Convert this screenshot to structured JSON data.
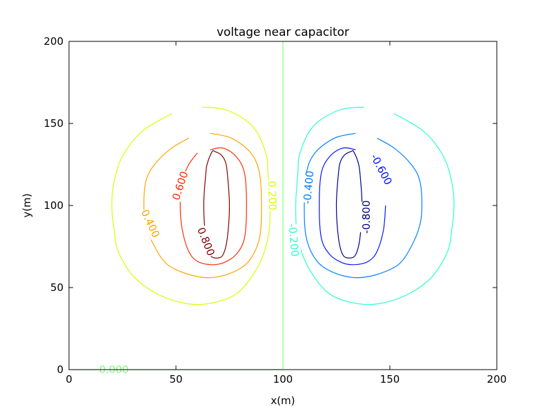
{
  "chart_data": {
    "type": "contour",
    "title": "voltage near capacitor",
    "xlabel": "x(m)",
    "ylabel": "y(m)",
    "xlim": [
      0,
      200
    ],
    "ylim": [
      0,
      200
    ],
    "x_ticks": [
      0,
      50,
      100,
      150,
      200
    ],
    "x_tick_labels": [
      "0",
      "50",
      "100",
      "150",
      "200"
    ],
    "y_ticks": [
      0,
      50,
      100,
      150,
      200
    ],
    "y_tick_labels": [
      "0",
      "50",
      "100",
      "150",
      "200"
    ],
    "grid": false,
    "colormap": "jet",
    "contours": [
      {
        "level": 0.8,
        "label": "0.800",
        "color": "#800000",
        "points": [
          [
            68,
            133
          ],
          [
            71,
            131
          ],
          [
            73,
            127
          ],
          [
            74,
            120
          ],
          [
            75,
            100
          ],
          [
            74,
            80
          ],
          [
            72,
            70
          ],
          [
            69,
            68
          ],
          [
            66,
            70
          ],
          [
            64,
            80
          ],
          [
            63,
            100
          ],
          [
            64,
            120
          ],
          [
            65,
            127
          ],
          [
            67,
            133
          ]
        ],
        "labels": [
          {
            "x": 64,
            "y": 78,
            "rot": 68
          }
        ]
      },
      {
        "level": 0.6,
        "label": "0.600",
        "color": "#ff2a00",
        "points": [
          [
            66,
            134
          ],
          [
            72,
            135
          ],
          [
            78,
            130
          ],
          [
            82,
            120
          ],
          [
            83,
            100
          ],
          [
            82,
            80
          ],
          [
            78,
            70
          ],
          [
            72,
            65
          ],
          [
            66,
            64
          ],
          [
            60,
            66
          ],
          [
            56,
            72
          ],
          [
            53,
            85
          ],
          [
            52,
            100
          ],
          [
            53,
            115
          ],
          [
            56,
            125
          ],
          [
            60,
            132
          ]
        ],
        "labels": [
          {
            "x": 52,
            "y": 112,
            "rot": -72
          }
        ]
      },
      {
        "level": 0.4,
        "label": "0.400",
        "color": "#ffa200",
        "points": [
          [
            66,
            144
          ],
          [
            76,
            141
          ],
          [
            85,
            132
          ],
          [
            89,
            120
          ],
          [
            90,
            100
          ],
          [
            89,
            80
          ],
          [
            84,
            66
          ],
          [
            76,
            59
          ],
          [
            66,
            56
          ],
          [
            56,
            58
          ],
          [
            46,
            64
          ],
          [
            40,
            75
          ],
          [
            36,
            88
          ],
          [
            35,
            100
          ],
          [
            36,
            115
          ],
          [
            40,
            125
          ],
          [
            48,
            135
          ],
          [
            56,
            141
          ]
        ],
        "labels": [
          {
            "x": 38,
            "y": 89,
            "rot": 65
          }
        ]
      },
      {
        "level": 0.2,
        "label": "0.200",
        "color": "#d4ff00",
        "points": [
          [
            62,
            160
          ],
          [
            74,
            158
          ],
          [
            86,
            148
          ],
          [
            92,
            132
          ],
          [
            93,
            120
          ],
          [
            94,
            100
          ],
          [
            93,
            80
          ],
          [
            88,
            62
          ],
          [
            78,
            46
          ],
          [
            64,
            40
          ],
          [
            52,
            41
          ],
          [
            40,
            47
          ],
          [
            30,
            57
          ],
          [
            23,
            72
          ],
          [
            21,
            86
          ],
          [
            20,
            100
          ],
          [
            21,
            114
          ],
          [
            25,
            130
          ],
          [
            34,
            145
          ],
          [
            48,
            156
          ]
        ],
        "labels": [
          {
            "x": 95,
            "y": 106,
            "rot": 88
          }
        ]
      },
      {
        "level": 0.0,
        "label": "0.000",
        "color": "#7dff7a",
        "points": [
          [
            100,
            200
          ],
          [
            100,
            0
          ]
        ],
        "extra_line": [
          [
            0,
            0
          ],
          [
            100,
            0
          ]
        ],
        "labels": [
          {
            "x": 21,
            "y": 0,
            "rot": 0
          }
        ]
      },
      {
        "level": -0.2,
        "label": "-0.200",
        "color": "#29ffce",
        "points": [
          [
            138,
            160
          ],
          [
            126,
            158
          ],
          [
            114,
            148
          ],
          [
            108,
            132
          ],
          [
            107,
            120
          ],
          [
            106,
            100
          ],
          [
            107,
            80
          ],
          [
            112,
            62
          ],
          [
            122,
            46
          ],
          [
            136,
            40
          ],
          [
            148,
            41
          ],
          [
            160,
            47
          ],
          [
            170,
            57
          ],
          [
            177,
            72
          ],
          [
            179,
            86
          ],
          [
            180,
            100
          ],
          [
            179,
            114
          ],
          [
            175,
            130
          ],
          [
            166,
            145
          ],
          [
            152,
            156
          ]
        ],
        "labels": [
          {
            "x": 105,
            "y": 79,
            "rot": 85
          }
        ]
      },
      {
        "level": -0.4,
        "label": "-0.400",
        "color": "#0080ff",
        "points": [
          [
            134,
            144
          ],
          [
            124,
            141
          ],
          [
            115,
            132
          ],
          [
            111,
            120
          ],
          [
            110,
            100
          ],
          [
            111,
            80
          ],
          [
            116,
            66
          ],
          [
            124,
            59
          ],
          [
            134,
            56
          ],
          [
            144,
            58
          ],
          [
            154,
            64
          ],
          [
            160,
            75
          ],
          [
            164,
            88
          ],
          [
            165,
            100
          ],
          [
            164,
            115
          ],
          [
            160,
            125
          ],
          [
            152,
            135
          ],
          [
            144,
            141
          ]
        ],
        "labels": [
          {
            "x": 112,
            "y": 111,
            "rot": -85
          }
        ]
      },
      {
        "level": -0.6,
        "label": "-0.600",
        "color": "#0014ff",
        "points": [
          [
            134,
            134
          ],
          [
            128,
            135
          ],
          [
            122,
            130
          ],
          [
            118,
            120
          ],
          [
            117,
            100
          ],
          [
            118,
            80
          ],
          [
            122,
            70
          ],
          [
            128,
            65
          ],
          [
            134,
            64
          ],
          [
            140,
            66
          ],
          [
            144,
            72
          ],
          [
            147,
            85
          ],
          [
            148,
            100
          ]
        ],
        "labels": [
          {
            "x": 146,
            "y": 122,
            "rot": 62
          }
        ]
      },
      {
        "level": -0.8,
        "label": "-0.800",
        "color": "#000080",
        "points": [
          [
            132,
            133
          ],
          [
            129,
            131
          ],
          [
            127,
            127
          ],
          [
            126,
            120
          ],
          [
            125,
            100
          ],
          [
            126,
            80
          ],
          [
            128,
            70
          ],
          [
            131,
            68
          ],
          [
            134,
            70
          ],
          [
            136,
            80
          ],
          [
            137,
            100
          ],
          [
            136,
            120
          ],
          [
            135,
            127
          ],
          [
            133,
            133
          ]
        ],
        "labels": [
          {
            "x": 139,
            "y": 93,
            "rot": -90
          }
        ]
      }
    ]
  }
}
